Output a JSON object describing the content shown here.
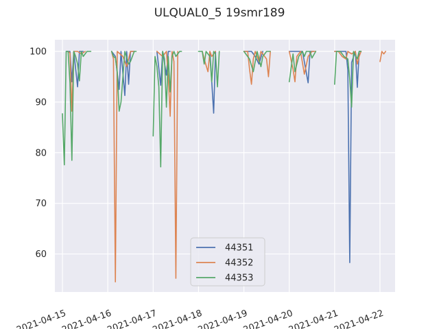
{
  "chart_data": {
    "type": "line",
    "title": "ULQUAL0_5 19smr189",
    "xlabel": "",
    "ylabel": "",
    "x_ticks": [
      "2021-04-15",
      "2021-04-16",
      "2021-04-17",
      "2021-04-18",
      "2021-04-19",
      "2021-04-20",
      "2021-04-21",
      "2021-04-22"
    ],
    "y_ticks": [
      60,
      70,
      80,
      90,
      100
    ],
    "xlim": [
      "2021-04-14 20:00",
      "2021-04-22 08:00"
    ],
    "ylim": [
      52.5,
      102.3
    ],
    "grid": true,
    "legend_position": "lower center",
    "series": [
      {
        "name": "44351",
        "color": "#4c72b0",
        "points": [
          [
            "2021-04-15 02:00",
            100
          ],
          [
            "2021-04-15 04:00",
            100
          ],
          [
            "2021-04-15 05:00",
            94
          ],
          [
            "2021-04-15 06:00",
            100
          ],
          [
            "2021-04-15 08:00",
            93
          ],
          [
            "2021-04-15 09:00",
            100
          ],
          [
            "2021-04-15 11:00",
            100
          ],
          null,
          [
            "2021-04-16 02:00",
            100
          ],
          [
            "2021-04-16 04:00",
            99
          ],
          [
            "2021-04-16 06:00",
            92.5
          ],
          [
            "2021-04-16 07:00",
            100
          ],
          [
            "2021-04-16 09:00",
            91.3
          ],
          [
            "2021-04-16 10:00",
            100
          ],
          [
            "2021-04-16 11:00",
            93.5
          ],
          [
            "2021-04-16 12:00",
            100
          ],
          [
            "2021-04-16 14:00",
            100
          ],
          null,
          [
            "2021-04-17 02:00",
            100
          ],
          [
            "2021-04-17 04:00",
            93.3
          ],
          [
            "2021-04-17 05:00",
            100
          ],
          [
            "2021-04-17 07:00",
            95.3
          ],
          [
            "2021-04-17 08:00",
            100
          ],
          [
            "2021-04-17 09:00",
            100
          ],
          null,
          [
            "2021-04-18 06:00",
            100
          ],
          [
            "2021-04-18 08:00",
            87.8
          ],
          [
            "2021-04-18 09:00",
            100
          ],
          null,
          [
            "2021-04-19 00:00",
            100
          ],
          [
            "2021-04-19 04:00",
            100
          ],
          [
            "2021-04-19 06:00",
            99
          ],
          [
            "2021-04-19 08:00",
            97.5
          ],
          [
            "2021-04-19 10:00",
            100
          ],
          null,
          [
            "2021-04-20 00:00",
            100
          ],
          [
            "2021-04-20 07:00",
            100
          ],
          [
            "2021-04-20 10:00",
            93.8
          ],
          [
            "2021-04-20 11:00",
            100
          ],
          [
            "2021-04-20 13:00",
            100
          ],
          null,
          [
            "2021-04-21 00:00",
            100
          ],
          [
            "2021-04-21 06:00",
            100
          ],
          [
            "2021-04-21 07:00",
            96.3
          ],
          [
            "2021-04-21 08:00",
            58.3
          ],
          [
            "2021-04-21 09:00",
            97.8
          ],
          [
            "2021-04-21 11:00",
            100
          ],
          [
            "2021-04-21 12:00",
            92.9
          ],
          [
            "2021-04-21 13:00",
            100
          ],
          [
            "2021-04-21 14:00",
            100
          ]
        ]
      },
      {
        "name": "44352",
        "color": "#dd8452",
        "points": [
          [
            "2021-04-15 03:00",
            100
          ],
          [
            "2021-04-15 04:00",
            99.7
          ],
          [
            "2021-04-15 05:00",
            88.2
          ],
          [
            "2021-04-15 06:00",
            100
          ],
          [
            "2021-04-15 08:00",
            100
          ],
          [
            "2021-04-15 10:00",
            99.5
          ],
          [
            "2021-04-15 12:00",
            100
          ],
          null,
          [
            "2021-04-16 02:00",
            100
          ],
          [
            "2021-04-16 03:00",
            98.5
          ],
          [
            "2021-04-16 04:00",
            54.5
          ],
          [
            "2021-04-16 05:00",
            100
          ],
          [
            "2021-04-16 08:00",
            99
          ],
          [
            "2021-04-16 10:00",
            97
          ],
          [
            "2021-04-16 12:00",
            100
          ],
          [
            "2021-04-16 14:00",
            100
          ],
          null,
          [
            "2021-04-17 02:00",
            100
          ],
          [
            "2021-04-17 05:00",
            99
          ],
          [
            "2021-04-17 07:00",
            100
          ],
          [
            "2021-04-17 08:00",
            95
          ],
          [
            "2021-04-17 09:00",
            87.2
          ],
          [
            "2021-04-17 10:00",
            100
          ],
          [
            "2021-04-17 11:00",
            98
          ],
          [
            "2021-04-17 12:00",
            55.2
          ],
          [
            "2021-04-17 13:00",
            100
          ],
          null,
          [
            "2021-04-18 02:00",
            100
          ],
          [
            "2021-04-18 03:00",
            98.5
          ],
          [
            "2021-04-18 05:00",
            96
          ],
          [
            "2021-04-18 06:00",
            100
          ],
          [
            "2021-04-18 07:00",
            99
          ],
          [
            "2021-04-18 09:00",
            100
          ],
          null,
          [
            "2021-04-19 00:00",
            100
          ],
          [
            "2021-04-19 02:00",
            100
          ],
          [
            "2021-04-19 03:00",
            96.5
          ],
          [
            "2021-04-19 04:00",
            93.5
          ],
          [
            "2021-04-19 05:00",
            98.5
          ],
          [
            "2021-04-19 06:00",
            100
          ],
          [
            "2021-04-19 08:00",
            98
          ],
          [
            "2021-04-19 09:00",
            100
          ],
          [
            "2021-04-19 12:00",
            98.5
          ],
          [
            "2021-04-19 13:00",
            95
          ],
          [
            "2021-04-19 14:00",
            100
          ],
          null,
          [
            "2021-04-20 00:00",
            100
          ],
          [
            "2021-04-20 02:00",
            96.5
          ],
          [
            "2021-04-20 03:00",
            94
          ],
          [
            "2021-04-20 04:00",
            99
          ],
          [
            "2021-04-20 06:00",
            100
          ],
          [
            "2021-04-20 08:00",
            95.5
          ],
          [
            "2021-04-20 10:00",
            99
          ],
          [
            "2021-04-20 12:00",
            100
          ],
          [
            "2021-04-20 14:00",
            100
          ],
          null,
          [
            "2021-04-21 00:00",
            100
          ],
          [
            "2021-04-21 02:00",
            100
          ],
          [
            "2021-04-21 04:00",
            99
          ],
          [
            "2021-04-21 06:00",
            98.5
          ],
          [
            "2021-04-21 07:00",
            100
          ],
          [
            "2021-04-21 09:00",
            99.5
          ],
          [
            "2021-04-21 11:00",
            100
          ],
          [
            "2021-04-21 12:00",
            97.5
          ],
          [
            "2021-04-21 13:00",
            99
          ],
          [
            "2021-04-21 14:00",
            100
          ],
          null,
          [
            "2021-04-22 00:00",
            98
          ],
          [
            "2021-04-22 01:00",
            100
          ],
          [
            "2021-04-22 02:00",
            99.5
          ],
          [
            "2021-04-22 03:00",
            100
          ]
        ]
      },
      {
        "name": "44353",
        "color": "#55a868",
        "points": [
          [
            "2021-04-15 00:00",
            87.7
          ],
          [
            "2021-04-15 01:00",
            77.6
          ],
          [
            "2021-04-15 02:00",
            100
          ],
          [
            "2021-04-15 03:00",
            100
          ],
          [
            "2021-04-15 04:00",
            93.8
          ],
          [
            "2021-04-15 05:00",
            78.5
          ],
          [
            "2021-04-15 06:00",
            100
          ],
          [
            "2021-04-15 07:00",
            99
          ],
          [
            "2021-04-15 08:00",
            97.5
          ],
          [
            "2021-04-15 09:00",
            94.2
          ],
          [
            "2021-04-15 10:00",
            100
          ],
          [
            "2021-04-15 11:00",
            99
          ],
          [
            "2021-04-15 13:00",
            100
          ],
          [
            "2021-04-15 15:00",
            100
          ],
          null,
          [
            "2021-04-16 02:00",
            100
          ],
          [
            "2021-04-16 03:00",
            99
          ],
          [
            "2021-04-16 04:00",
            98.7
          ],
          [
            "2021-04-16 05:00",
            96
          ],
          [
            "2021-04-16 06:00",
            88.2
          ],
          [
            "2021-04-16 07:00",
            90
          ],
          [
            "2021-04-16 09:00",
            100
          ],
          [
            "2021-04-16 11:00",
            97.5
          ],
          [
            "2021-04-16 12:00",
            98
          ],
          [
            "2021-04-16 14:00",
            100
          ],
          [
            "2021-04-16 15:00",
            100
          ],
          null,
          [
            "2021-04-17 00:00",
            83.3
          ],
          [
            "2021-04-17 01:00",
            99
          ],
          [
            "2021-04-17 02:00",
            97
          ],
          [
            "2021-04-17 03:00",
            93
          ],
          [
            "2021-04-17 04:00",
            77.2
          ],
          [
            "2021-04-17 05:00",
            100
          ],
          [
            "2021-04-17 06:00",
            98.5
          ],
          [
            "2021-04-17 07:00",
            89
          ],
          [
            "2021-04-17 08:00",
            99
          ],
          [
            "2021-04-17 09:00",
            92
          ],
          [
            "2021-04-17 10:00",
            99
          ],
          [
            "2021-04-17 11:00",
            100
          ],
          [
            "2021-04-17 12:00",
            99
          ],
          [
            "2021-04-17 14:00",
            100
          ],
          [
            "2021-04-17 15:00",
            100
          ],
          null,
          [
            "2021-04-18 00:00",
            100
          ],
          [
            "2021-04-18 02:00",
            100
          ],
          [
            "2021-04-18 03:00",
            97.5
          ],
          [
            "2021-04-18 04:00",
            100
          ],
          [
            "2021-04-18 06:00",
            99
          ],
          [
            "2021-04-18 07:00",
            94
          ],
          [
            "2021-04-18 08:00",
            100
          ],
          [
            "2021-04-18 09:00",
            99.5
          ],
          [
            "2021-04-18 10:00",
            93
          ],
          [
            "2021-04-18 11:00",
            100
          ],
          null,
          [
            "2021-04-19 00:00",
            100
          ],
          [
            "2021-04-19 03:00",
            98.5
          ],
          [
            "2021-04-19 05:00",
            96
          ],
          [
            "2021-04-19 06:00",
            98
          ],
          [
            "2021-04-19 07:00",
            100
          ],
          [
            "2021-04-19 09:00",
            97
          ],
          [
            "2021-04-19 10:00",
            99
          ],
          [
            "2021-04-19 12:00",
            100
          ],
          [
            "2021-04-19 14:00",
            100
          ],
          null,
          [
            "2021-04-20 00:00",
            94
          ],
          [
            "2021-04-20 02:00",
            99.5
          ],
          [
            "2021-04-20 03:00",
            96
          ],
          [
            "2021-04-20 05:00",
            99
          ],
          [
            "2021-04-20 07:00",
            100
          ],
          [
            "2021-04-20 08:00",
            99
          ],
          [
            "2021-04-20 09:00",
            100
          ],
          [
            "2021-04-20 11:00",
            100
          ],
          [
            "2021-04-20 12:00",
            98.7
          ],
          [
            "2021-04-20 14:00",
            100
          ],
          null,
          [
            "2021-04-21 00:00",
            93.5
          ],
          [
            "2021-04-21 01:00",
            100
          ],
          [
            "2021-04-21 03:00",
            100
          ],
          [
            "2021-04-21 05:00",
            99
          ],
          [
            "2021-04-21 07:00",
            98.5
          ],
          [
            "2021-04-21 08:00",
            94.5
          ],
          [
            "2021-04-21 09:00",
            89
          ],
          [
            "2021-04-21 10:00",
            100
          ],
          [
            "2021-04-21 12:00",
            98.5
          ],
          [
            "2021-04-21 13:00",
            100
          ],
          [
            "2021-04-21 14:00",
            100
          ]
        ]
      }
    ]
  }
}
